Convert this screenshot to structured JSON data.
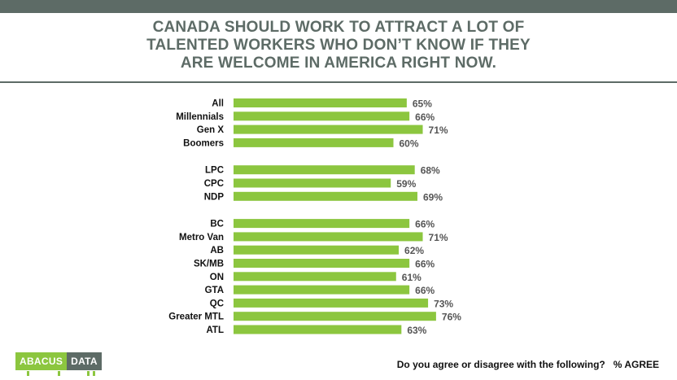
{
  "title_lines": [
    "CANADA SHOULD WORK TO ATTRACT A LOT OF",
    "TALENTED WORKERS WHO DON’T KNOW IF THEY",
    "ARE WELCOME  IN AMERICA RIGHT NOW."
  ],
  "footer": {
    "question": "Do you agree or disagree with the following?",
    "measure": "% AGREE"
  },
  "logo": {
    "part1": "ABACUS",
    "part2": "DATA"
  },
  "colors": {
    "bar": "#8cc63f",
    "header": "#5d6b66",
    "value_text": "#555555"
  },
  "chart_data": {
    "type": "bar",
    "orientation": "horizontal",
    "groups": [
      [
        "All",
        "Millennials",
        "Gen X",
        "Boomers"
      ],
      [
        "LPC",
        "CPC",
        "NDP"
      ],
      [
        "BC",
        "Metro Van",
        "AB",
        "SK/MB",
        "ON",
        "GTA",
        "QC",
        "Greater MTL",
        "ATL"
      ]
    ],
    "categories": [
      "All",
      "Millennials",
      "Gen X",
      "Boomers",
      "LPC",
      "CPC",
      "NDP",
      "BC",
      "Metro Van",
      "AB",
      "SK/MB",
      "ON",
      "GTA",
      "QC",
      "Greater MTL",
      "ATL"
    ],
    "values": [
      65,
      66,
      71,
      60,
      68,
      59,
      69,
      66,
      71,
      62,
      66,
      61,
      66,
      73,
      76,
      63
    ],
    "value_labels": [
      "65%",
      "66%",
      "71%",
      "60%",
      "68%",
      "59%",
      "69%",
      "66%",
      "71%",
      "62%",
      "66%",
      "61%",
      "66%",
      "73%",
      "76%",
      "63%"
    ],
    "unit": "%",
    "xlim": [
      0,
      100
    ],
    "grid": false,
    "legend": "none"
  }
}
